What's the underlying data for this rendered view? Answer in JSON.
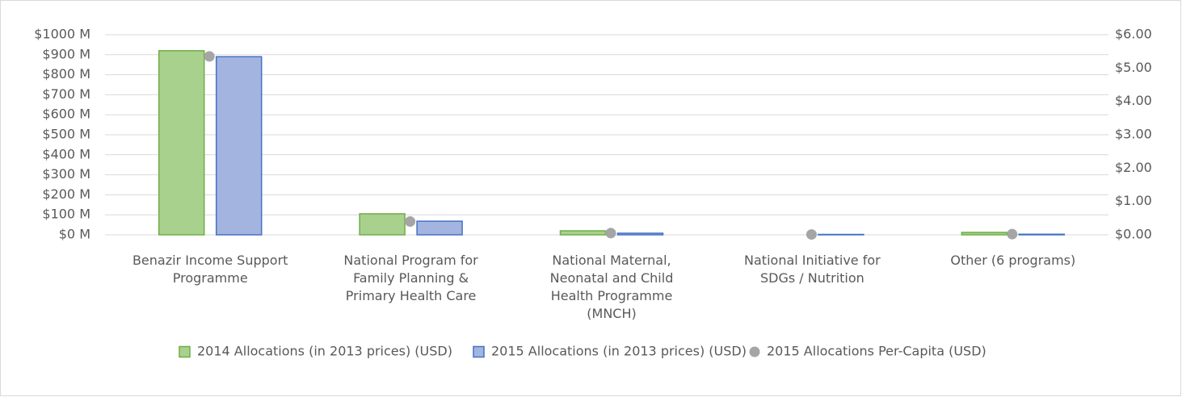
{
  "chart_data": {
    "type": "bar",
    "categories": [
      "Benazir Income Support\nProgramme",
      "National Program for\nFamily Planning &\nPrimary Health Care",
      "National Maternal,\nNeonatal and Child\nHealth Programme\n(MNCH)",
      "National Initiative for\nSDGs / Nutrition",
      "Other (6 programs)"
    ],
    "series": [
      {
        "name": "2014 Allocations (in 2013 prices) (USD)",
        "type": "bar",
        "color": "#a9d18e",
        "stroke": "#70ad47",
        "values": [
          920,
          105,
          20,
          0,
          12
        ]
      },
      {
        "name": "2015 Allocations (in 2013 prices) (USD)",
        "type": "bar",
        "color": "#a4b4e0",
        "stroke": "#4472c4",
        "values": [
          890,
          68,
          8,
          2,
          3
        ]
      },
      {
        "name": "2015 Allocations Per-Capita (USD)",
        "type": "scatter",
        "axis": "y2",
        "color": "#a5a5a5",
        "values": [
          5.35,
          0.4,
          0.05,
          0.01,
          0.02
        ]
      }
    ],
    "ylim": [
      0,
      1000
    ],
    "yticks": [
      {
        "value": 0,
        "label": "$0 M"
      },
      {
        "value": 100,
        "label": "$100 M"
      },
      {
        "value": 200,
        "label": "$200 M"
      },
      {
        "value": 300,
        "label": "$300 M"
      },
      {
        "value": 400,
        "label": "$400 M"
      },
      {
        "value": 500,
        "label": "$500 M"
      },
      {
        "value": 600,
        "label": "$600 M"
      },
      {
        "value": 700,
        "label": "$700 M"
      },
      {
        "value": 800,
        "label": "$800 M"
      },
      {
        "value": 900,
        "label": "$900 M"
      },
      {
        "value": 1000,
        "label": "$1000 M"
      }
    ],
    "y2lim": [
      0,
      6
    ],
    "y2ticks": [
      {
        "value": 0,
        "label": "$0.00"
      },
      {
        "value": 1,
        "label": "$1.00"
      },
      {
        "value": 2,
        "label": "$2.00"
      },
      {
        "value": 3,
        "label": "$3.00"
      },
      {
        "value": 4,
        "label": "$4.00"
      },
      {
        "value": 5,
        "label": "$5.00"
      },
      {
        "value": 6,
        "label": "$6.00"
      }
    ],
    "grid": true,
    "legend": "bottom"
  }
}
